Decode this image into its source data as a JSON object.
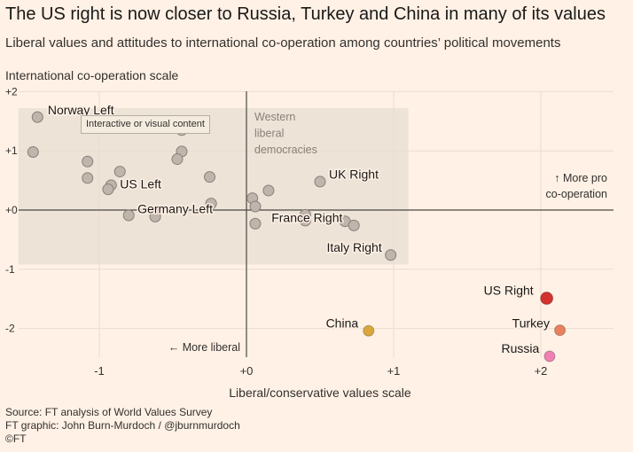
{
  "header": {
    "title": "The US right is now closer to Russia, Turkey and China in many of its values",
    "subtitle": "Liberal values and attitudes to international co-operation among countries’ political movements"
  },
  "tooltip": "Interactive or visual content",
  "chart_data": {
    "type": "scatter",
    "ylabel": "International co-operation scale",
    "xlabel": "Liberal/conservative values scale",
    "xlim": [
      -1.6,
      2.5
    ],
    "ylim": [
      -2.55,
      2.05
    ],
    "xticks": [
      {
        "value": -1,
        "label": "-1"
      },
      {
        "value": 0,
        "label": "+0"
      },
      {
        "value": 1,
        "label": "+1"
      },
      {
        "value": 2,
        "label": "+2"
      }
    ],
    "yticks": [
      {
        "value": 2,
        "label": "+2"
      },
      {
        "value": 1,
        "label": "+1"
      },
      {
        "value": 0,
        "label": "+0"
      },
      {
        "value": -1,
        "label": "-1"
      },
      {
        "value": -2,
        "label": "-2"
      }
    ],
    "grid": true,
    "region": {
      "label_lines": [
        "Western",
        "liberal",
        "democracies"
      ],
      "x": [
        -1.55,
        1.1
      ],
      "y": [
        -0.92,
        1.72
      ],
      "color": "#ede3d7"
    },
    "annotations": {
      "more_coop": [
        "↑ More pro",
        "co-operation"
      ],
      "more_liberal": "← More liberal"
    },
    "colors": {
      "grey_point": "#bfb5ad",
      "grey_stroke": "#8a7f77",
      "us_right": "#d3322f",
      "china": "#dba73a",
      "turkey": "#e9805e",
      "russia": "#f07fb3",
      "axis": "#4d4845",
      "grid": "#ecdccd"
    },
    "points": [
      {
        "x": -1.42,
        "y": 1.57
      },
      {
        "x": -1.45,
        "y": 0.98
      },
      {
        "x": -1.08,
        "y": 0.82
      },
      {
        "x": -1.08,
        "y": 0.54
      },
      {
        "x": -0.86,
        "y": 0.65
      },
      {
        "x": -0.92,
        "y": 0.42
      },
      {
        "x": -0.94,
        "y": 0.35
      },
      {
        "x": -0.8,
        "y": -0.09
      },
      {
        "x": -0.62,
        "y": -0.11
      },
      {
        "x": -0.44,
        "y": 1.35
      },
      {
        "x": -0.44,
        "y": 0.99
      },
      {
        "x": -0.47,
        "y": 0.86
      },
      {
        "x": -0.25,
        "y": 0.56
      },
      {
        "x": -0.24,
        "y": 0.11
      },
      {
        "x": 0.04,
        "y": 0.2
      },
      {
        "x": 0.06,
        "y": 0.06
      },
      {
        "x": 0.15,
        "y": 0.33
      },
      {
        "x": 0.06,
        "y": -0.23
      },
      {
        "x": 0.4,
        "y": -0.08
      },
      {
        "x": 0.4,
        "y": -0.18
      },
      {
        "x": 0.5,
        "y": 0.48
      },
      {
        "x": 0.67,
        "y": -0.19
      },
      {
        "x": 0.73,
        "y": -0.26
      },
      {
        "x": 0.98,
        "y": -0.76
      },
      {
        "x": 2.04,
        "y": -1.49,
        "color_key": "us_right",
        "r": 7
      },
      {
        "x": 0.83,
        "y": -2.04,
        "color_key": "china"
      },
      {
        "x": 2.13,
        "y": -2.03,
        "color_key": "turkey"
      },
      {
        "x": 2.06,
        "y": -2.47,
        "color_key": "russia"
      }
    ],
    "labels": [
      {
        "text": "Norway Left",
        "x": -1.35,
        "y": 1.62,
        "anchor": "start"
      },
      {
        "text": "US Left",
        "x": -0.86,
        "y": 0.37,
        "anchor": "start"
      },
      {
        "text": "Germany Left",
        "x": -0.74,
        "y": -0.05,
        "anchor": "start"
      },
      {
        "text": "UK Right",
        "x": 0.56,
        "y": 0.53,
        "anchor": "start"
      },
      {
        "text": "France Right",
        "x": 0.17,
        "y": -0.2,
        "anchor": "start"
      },
      {
        "text": "Italy Right",
        "x": 0.92,
        "y": -0.7,
        "anchor": "end"
      },
      {
        "text": "US Right",
        "x": 1.95,
        "y": -1.43,
        "anchor": "end"
      },
      {
        "text": "China",
        "x": 0.76,
        "y": -1.98,
        "anchor": "end"
      },
      {
        "text": "Turkey",
        "x": 2.06,
        "y": -1.98,
        "anchor": "end"
      },
      {
        "text": "Russia",
        "x": 1.99,
        "y": -2.41,
        "anchor": "end"
      }
    ]
  },
  "footer": {
    "source": "Source: FT analysis of World Values Survey",
    "graphic": "FT graphic: John Burn-Murdoch / @jburnmurdoch",
    "copyright": "©FT"
  }
}
